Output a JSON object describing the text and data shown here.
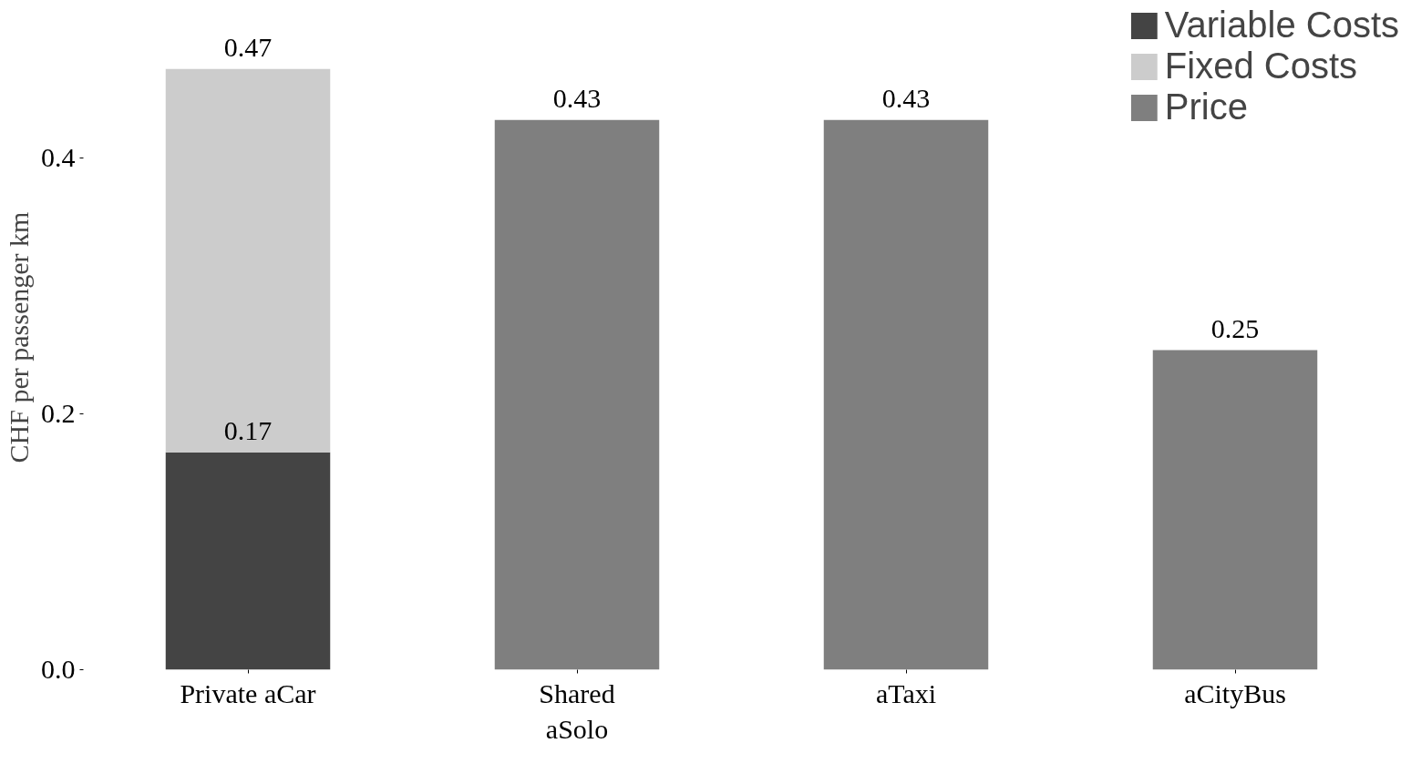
{
  "chart_data": {
    "type": "bar",
    "ylabel": "CHF per passenger km",
    "categories": [
      "Private aCar",
      "Shared\naSolo",
      "aTaxi",
      "aCityBus"
    ],
    "stacked": true,
    "series": [
      {
        "name": "Variable Costs",
        "color": "#444444",
        "values": [
          0.17,
          null,
          null,
          null
        ],
        "value_labels": [
          "0.17",
          null,
          null,
          null
        ]
      },
      {
        "name": "Fixed Costs",
        "color": "#cccccc",
        "values": [
          0.3,
          null,
          null,
          null
        ]
      },
      {
        "name": "Price",
        "color": "#7f7f7f",
        "values": [
          null,
          0.43,
          0.43,
          0.25
        ],
        "value_labels": [
          null,
          "0.43",
          "0.43",
          "0.25"
        ]
      }
    ],
    "totals": [
      "0.47",
      null,
      null,
      null
    ],
    "ylim": [
      0,
      0.52
    ],
    "yticks": [
      {
        "value": 0,
        "label": "0.0"
      },
      {
        "value": 0.2,
        "label": "0.2"
      },
      {
        "value": 0.4,
        "label": "0.4"
      }
    ],
    "grid": false,
    "legend": "top right"
  }
}
